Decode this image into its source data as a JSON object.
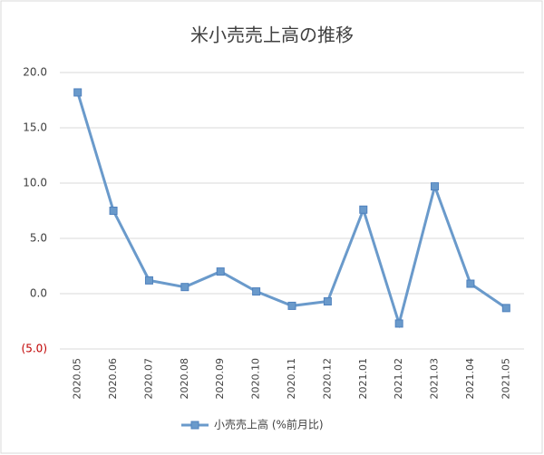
{
  "chart_data": {
    "type": "line",
    "title": "米小売売上高の推移",
    "categories": [
      "2020.05",
      "2020.06",
      "2020.07",
      "2020.08",
      "2020.09",
      "2020.10",
      "2020.11",
      "2020.12",
      "2021.01",
      "2021.02",
      "2021.03",
      "2021.04",
      "2021.05"
    ],
    "series": [
      {
        "name": "小売売上高 (%前月比)",
        "color": "#6a9acb",
        "marker_color": "#4f81bd",
        "values": [
          18.2,
          7.5,
          1.2,
          0.6,
          2.0,
          0.2,
          -1.1,
          -0.7,
          7.6,
          -2.7,
          9.7,
          0.9,
          -1.3
        ]
      }
    ],
    "ylim": [
      -5,
      20
    ],
    "yticks": [
      {
        "value": -5,
        "label": "(5.0)"
      },
      {
        "value": 0,
        "label": "0.0"
      },
      {
        "value": 5,
        "label": "5.0"
      },
      {
        "value": 10,
        "label": "10.0"
      },
      {
        "value": 15,
        "label": "15.0"
      },
      {
        "value": 20,
        "label": "20.0"
      }
    ],
    "negative_tick_color": "#c00000",
    "grid": true,
    "legend": "bottom"
  }
}
